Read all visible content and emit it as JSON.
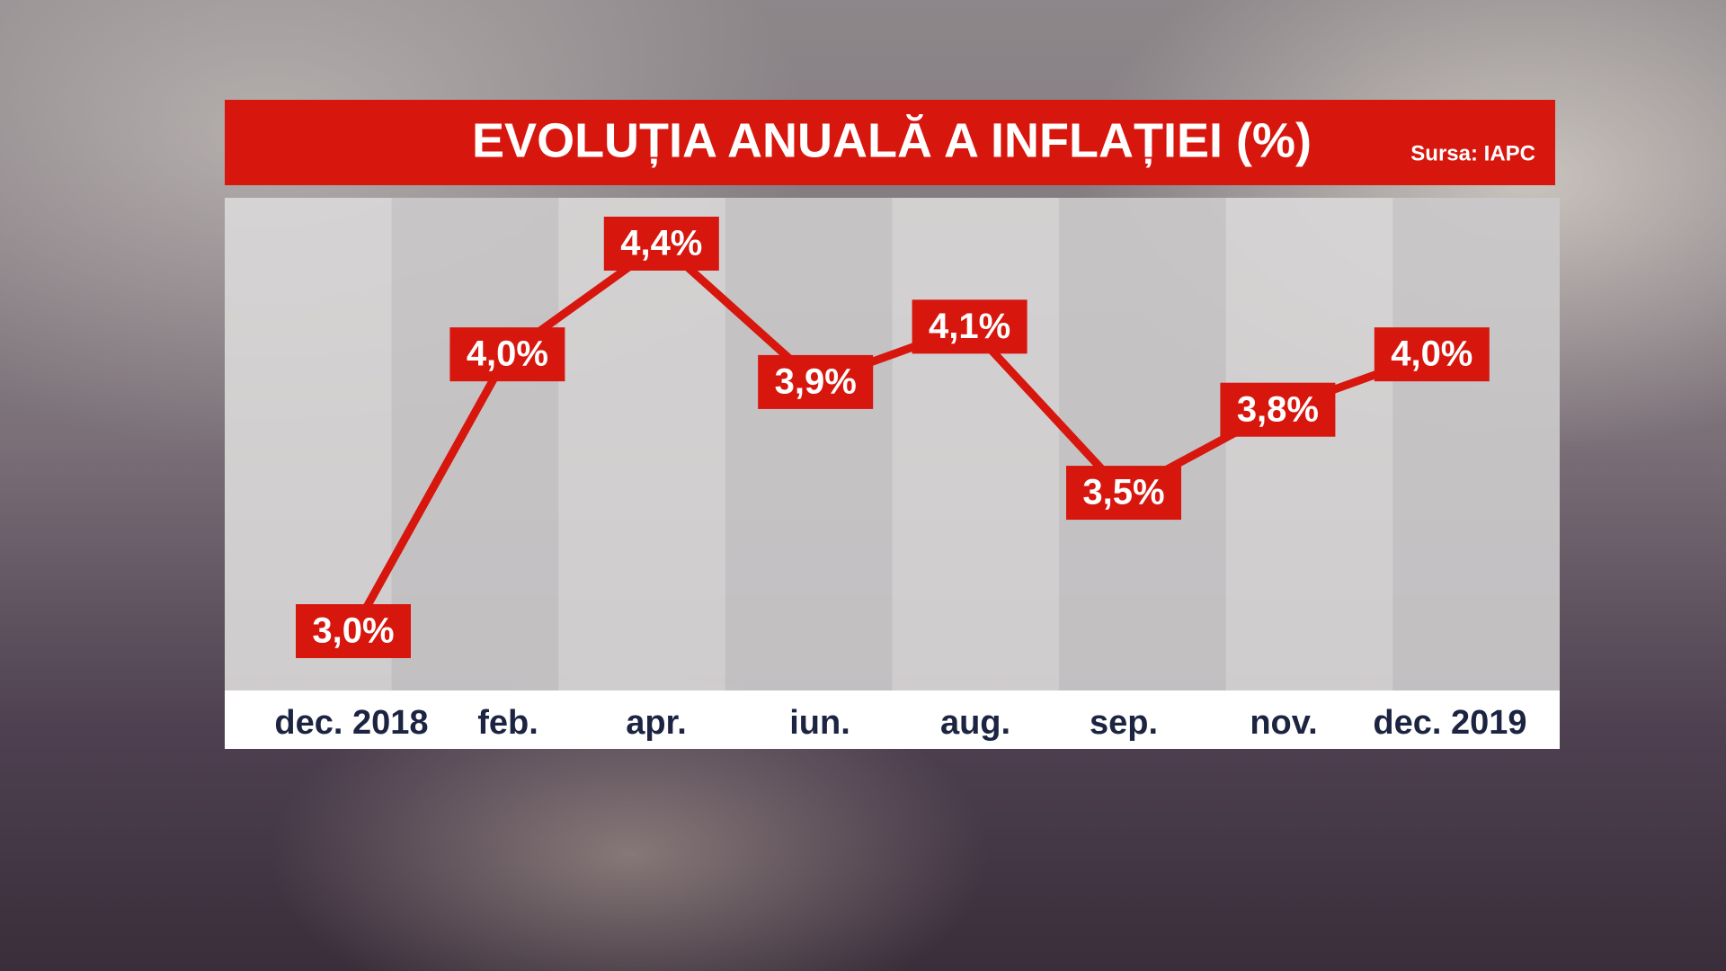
{
  "chart_data": {
    "type": "line",
    "title": "EVOLUȚIA ANUALĂ A INFLAȚIEI (%)",
    "source": "Sursa: IAPC",
    "categories": [
      "dec. 2018",
      "feb.",
      "apr.",
      "iun.",
      "aug.",
      "sep.",
      "nov.",
      "dec. 2019"
    ],
    "series": [
      {
        "color": "#d7160d",
        "values": [
          3.0,
          4.0,
          4.4,
          3.9,
          4.1,
          3.5,
          3.8,
          4.0
        ],
        "value_labels": [
          "3,0%",
          "4,0%",
          "4,4%",
          "3,9%",
          "4,1%",
          "3,5%",
          "3,8%",
          "4,0%"
        ]
      }
    ]
  }
}
